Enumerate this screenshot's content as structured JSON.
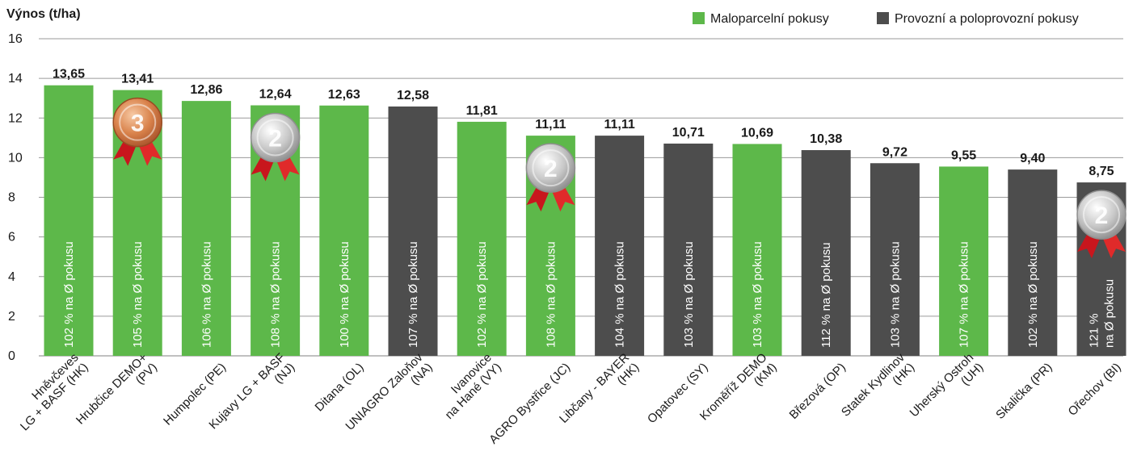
{
  "chart_data": {
    "type": "bar",
    "ylabel": "Výnos (t/ha)",
    "ylim": [
      0,
      16
    ],
    "yticks": [
      0,
      2,
      4,
      6,
      8,
      10,
      12,
      14,
      16
    ],
    "grid": true,
    "legend_position": "top-right",
    "legend": [
      {
        "name": "Maloparcelní pokusy",
        "color": "#5db84a"
      },
      {
        "name": "Provozní a poloprovozní pokusy",
        "color": "#4d4d4d"
      }
    ],
    "colors": {
      "Maloparcelní pokusy": "#5db84a",
      "Provozní a poloprovozní pokusy": "#4d4d4d"
    },
    "bars": [
      {
        "category": [
          "Hněvčeves",
          "LG + BASF (HK)"
        ],
        "value": 13.65,
        "value_label": "13,65",
        "group": "Maloparcelní pokusy",
        "inner_label": [
          "102 % na Ø pokusu"
        ],
        "medal": null
      },
      {
        "category": [
          "Hrubčice DEMO+",
          "(PV)"
        ],
        "value": 13.41,
        "value_label": "13,41",
        "group": "Maloparcelní pokusy",
        "inner_label": [
          "105 % na Ø pokusu"
        ],
        "medal": "3"
      },
      {
        "category": [
          "Humpolec (PE)"
        ],
        "value": 12.86,
        "value_label": "12,86",
        "group": "Maloparcelní pokusy",
        "inner_label": [
          "106 % na Ø pokusu"
        ],
        "medal": null
      },
      {
        "category": [
          "Kujavy LG + BASF",
          "(NJ)"
        ],
        "value": 12.64,
        "value_label": "12,64",
        "group": "Maloparcelní pokusy",
        "inner_label": [
          "108 % na Ø pokusu"
        ],
        "medal": "2"
      },
      {
        "category": [
          "Ditana  (OL)"
        ],
        "value": 12.63,
        "value_label": "12,63",
        "group": "Maloparcelní pokusy",
        "inner_label": [
          "100 % na Ø pokusu"
        ],
        "medal": null
      },
      {
        "category": [
          "UNIAGRO Zaloňov",
          "(NA)"
        ],
        "value": 12.58,
        "value_label": "12,58",
        "group": "Provozní a poloprovozní pokusy",
        "inner_label": [
          "107 % na Ø pokusu"
        ],
        "medal": null
      },
      {
        "category": [
          "Ivanovice",
          "na Hané (VY)"
        ],
        "value": 11.81,
        "value_label": "11,81",
        "group": "Maloparcelní pokusy",
        "inner_label": [
          "102 % na Ø pokusu"
        ],
        "medal": null
      },
      {
        "category": [
          "AGRO Bystřice (JC)"
        ],
        "value": 11.11,
        "value_label": "11,11",
        "group": "Maloparcelní pokusy",
        "inner_label": [
          "108 % na Ø pokusu"
        ],
        "medal": "2"
      },
      {
        "category": [
          "Libčany - BAYER",
          "(HK)"
        ],
        "value": 11.11,
        "value_label": "11,11",
        "group": "Provozní a poloprovozní pokusy",
        "inner_label": [
          "104 % na Ø pokusu"
        ],
        "medal": null
      },
      {
        "category": [
          "Opatovec (SY)"
        ],
        "value": 10.71,
        "value_label": "10,71",
        "group": "Provozní a poloprovozní pokusy",
        "inner_label": [
          "103 % na Ø pokusu"
        ],
        "medal": null
      },
      {
        "category": [
          "Kroměříž DEMO",
          "(KM)"
        ],
        "value": 10.69,
        "value_label": "10,69",
        "group": "Maloparcelní pokusy",
        "inner_label": [
          "103 % na Ø pokusu"
        ],
        "medal": null
      },
      {
        "category": [
          "Březová (OP)"
        ],
        "value": 10.38,
        "value_label": "10,38",
        "group": "Provozní a poloprovozní pokusy",
        "inner_label": [
          "112 % na Ø pokusu"
        ],
        "medal": null
      },
      {
        "category": [
          "Statek Kydlinov",
          "(HK)"
        ],
        "value": 9.72,
        "value_label": "9,72",
        "group": "Provozní a poloprovozní pokusy",
        "inner_label": [
          "103 % na Ø pokusu"
        ],
        "medal": null
      },
      {
        "category": [
          "Uherský Ostroh",
          "(UH)"
        ],
        "value": 9.55,
        "value_label": "9,55",
        "group": "Maloparcelní pokusy",
        "inner_label": [
          "107 % na Ø pokusu"
        ],
        "medal": null
      },
      {
        "category": [
          "Skalička (PR)"
        ],
        "value": 9.4,
        "value_label": "9,40",
        "group": "Provozní a poloprovozní pokusy",
        "inner_label": [
          "102 % na Ø pokusu"
        ],
        "medal": null
      },
      {
        "category": [
          "Ořechov (BI)"
        ],
        "value": 8.75,
        "value_label": "8,75",
        "group": "Provozní a poloprovozní pokusy",
        "inner_label": [
          "121 %",
          "na Ø pokusu"
        ],
        "medal": "2"
      }
    ]
  }
}
